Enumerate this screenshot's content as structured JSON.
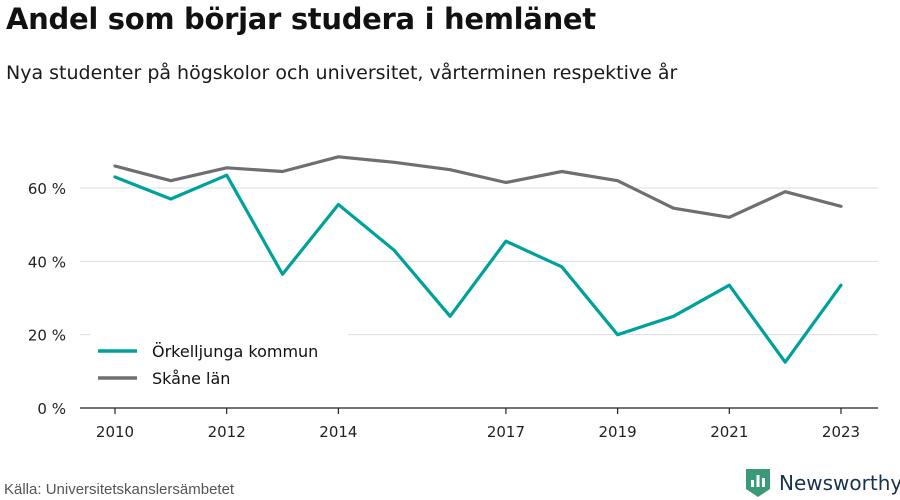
{
  "header": {
    "title": "Andel som börjar studera i hemlänet",
    "subtitle": "Nya studenter på högskolor och universitet, vårterminen respektive år"
  },
  "footer": {
    "source": "Källa: Universitetskanslersämbetet",
    "brand": "Newsworthy",
    "brand_icon": "newsworthy-logo-icon",
    "brand_color": "#3a9a76"
  },
  "chart_data": {
    "type": "line",
    "title": "Andel som börjar studera i hemlänet",
    "subtitle": "Nya studenter på högskolor och universitet, vårterminen respektive år",
    "xlabel": "",
    "ylabel": "",
    "x": [
      2010,
      2011,
      2012,
      2013,
      2014,
      2015,
      2016,
      2017,
      2018,
      2019,
      2020,
      2021,
      2022,
      2023
    ],
    "x_ticks": [
      "2010",
      "2012",
      "2014",
      "2017",
      "2019",
      "2021",
      "2023"
    ],
    "y_ticks": [
      "0 %",
      "20 %",
      "40 %",
      "60 %"
    ],
    "ylim": [
      0,
      70
    ],
    "grid": "horizontal",
    "legend_position": "bottom-left",
    "series": [
      {
        "name": "Örkelljunga kommun",
        "color": "#00a19a",
        "values": [
          63,
          57,
          63.5,
          36.5,
          55.5,
          43,
          25,
          45.5,
          38.5,
          20,
          25,
          33.5,
          12.5,
          33.5
        ]
      },
      {
        "name": "Skåne län",
        "color": "#6e6e73",
        "values": [
          66,
          62,
          65.5,
          64.5,
          68.5,
          67,
          65,
          61.5,
          64.5,
          62,
          54.5,
          52,
          59,
          55
        ]
      }
    ]
  }
}
